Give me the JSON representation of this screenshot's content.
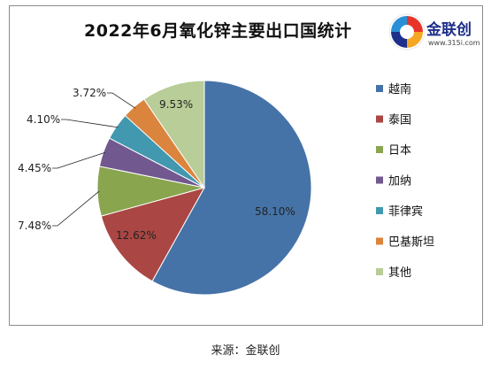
{
  "title": "2022年6月氧化锌主要出口国统计",
  "logo": {
    "name": "金联创",
    "url": "www.315i.com",
    "icon": "jinlianchuang-logo-icon"
  },
  "source": "来源：金联创",
  "chart_data": {
    "type": "pie",
    "title": "2022年6月氧化锌主要出口国统计",
    "categories": [
      "越南",
      "泰国",
      "日本",
      "加纳",
      "菲律宾",
      "巴基斯坦",
      "其他"
    ],
    "values": [
      58.1,
      12.62,
      7.48,
      4.45,
      4.1,
      3.72,
      9.53
    ],
    "labels": [
      "58.10%",
      "12.62%",
      "7.48%",
      "4.45%",
      "4.10%",
      "3.72%",
      "9.53%"
    ],
    "colors": [
      "#4573a7",
      "#aa4643",
      "#89a54e",
      "#71588f",
      "#4198af",
      "#db843d",
      "#b8cd97"
    ],
    "start": "12 o'clock",
    "direction": "clockwise",
    "legend_position": "right"
  }
}
